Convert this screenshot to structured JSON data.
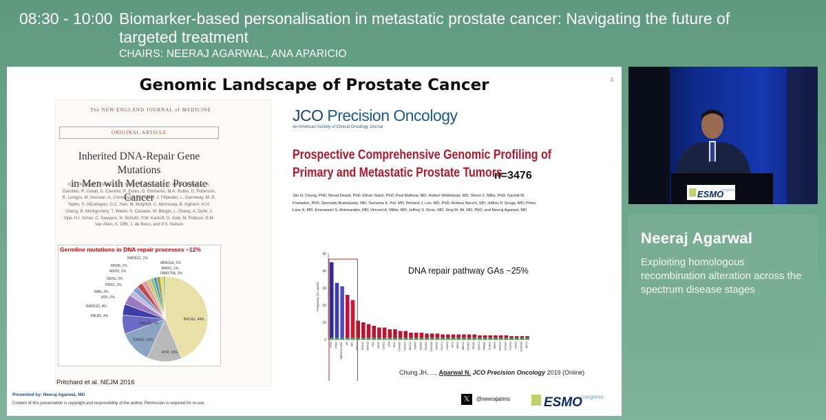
{
  "header": {
    "time": "08:30 - 10:00",
    "title_line1": "Biomarker-based personalisation in metastatic prostate cancer: Navigating the future of",
    "title_line2": "targeted treatment",
    "chairs": "CHAIRS: NEERAJ AGARWAL, ANA APARICIO"
  },
  "slide": {
    "title": "Genomic Landscape of Prostate Cancer",
    "page_number": "4",
    "nejm": {
      "journal": "The NEW ENGLAND JOURNAL of MEDICINE",
      "section": "ORIGINAL ARTICLE",
      "title_line1": "Inherited DNA-Repair Gene Mutations",
      "title_line2": "in Men with Metastatic Prostate Cancer",
      "authors": "C.C. Pritchard, J. Mateo, M.F. Walsh, N. De Sarkar, W. Abida, H. Beltran, A. Garofalo, R. Gulati, S. Carreira, R. Eeles, O. Elemento, M.A. Rubin, D. Robinson, R. Lonigro, M. Hussain, A. Chinnaiyan, J. Vinson, J. Filipenko, L. Garraway, M.-E. Taplin, S. AlDubayan, G.C. Han, M. Beightol, C. Morrissey, B. Nghiem, H.H. Cheng, B. Montgomery, T. Walsh, S. Casadei, M. Berger, L. Zhang, A. Zehir, J. Vijai, H.I. Scher, C. Sawyers, N. Schultz, P.W. Kantoff, D. Solit, M. Robson, E.M. Van Allen, K. Offit, J. de Bono, and P.S. Nelson",
      "pie_heading": "Germline mutations in DNA repair processes ~12%",
      "pie_labels": {
        "brca2": "BRCA2, 44%",
        "atm": "ATM, 13%",
        "chek2": "CHEK2, 12%",
        "brca1": "BRCA1, 7%",
        "pal": "PALB2, 4%",
        "rad51d": "RAD51D, 4%",
        "atr": "ATR, 2%",
        "nbn": "NBN, 2%",
        "pms2": "PMS2, 2%",
        "gen1": "GEN1, 2%",
        "msh2": "MSH2, 1%",
        "msh6": "MSH6, 1%",
        "rad51c": "RAD51C, 1%",
        "mre11a": "MRE11A, 1%",
        "brip1": "BRIP1, 1%",
        "fam175a": "FAM175A, 1%"
      },
      "citation": "Pritchard et al. NEJM 2016"
    },
    "jco": {
      "logo_main": "JCO",
      "logo_rest": "Precision Oncology",
      "logo_sub": "An American Society of Clinical Oncology Journal",
      "title_line1": "Prospective Comprehensive Genomic Profiling of",
      "title_line2": "Primary and Metastatic Prostate Tumors",
      "n_value": "n=3476",
      "authors": "Jon H. Chung, PhD; Ninad Dewal, PhD; Ethan Sokol, PhD; Paul Mathew, MD; Robert Whitehead, MD; Sherri Z. Millis, PhD; Garrett M. Frampton, PhD; Gennady Bratslavsky, MD; Sumanta K. Pal, MD; Richard J. Lee, MD, PhD; Andrea Necchi, MD; Jeffrey P. Gregg, MD; Primo Lara Jr, MD; Emmanuel S. Antonarakis, MD; Vincent A. Miller, MD; Jeffrey S. Ross, MD; Siraj M. Ali, MD, PhD; and Neeraj Agarwal, MD",
      "dna_label": "DNA repair pathway GAs ~25%",
      "citation_prefix": "Chung JH, ..., ",
      "citation_author": "Agarwal N.",
      "citation_journal": "JCO Precision Oncology",
      "citation_suffix": " 2019 (Online)"
    },
    "presented_by": "Presented by: Neeraj Agarwal, MD",
    "copyright": "Content of this presentation is copyright and responsibility of the author. Permission is required for re-use.",
    "x_icon": "𝕏",
    "x_handle": "@neerajaiims",
    "esmo_word": "ESMO",
    "esmo_congress": "congress"
  },
  "chart_data": {
    "type": "bar",
    "ylim": [
      0,
      50
    ],
    "yticks": [
      "0",
      "10",
      "20",
      "30",
      "40",
      "50"
    ],
    "ylabel": "Frequency (% cases)",
    "categories": [
      "TP53",
      "PTEN",
      "TMPRSS2-ERG",
      "AR",
      "APC",
      "BRCA2",
      "FOXA1",
      "KMT2D",
      "RB1",
      "SPOP",
      "CDK12",
      "ATM",
      "MYC",
      "CTNNB1",
      "PIK3CA",
      "BRCA1",
      "ZNRF3",
      "KDM6A",
      "PIK3R1",
      "CDKN1B",
      "RAD51",
      "NKX3-1",
      "CHEK2",
      "AKT1",
      "MSH2",
      "MED12",
      "NCOR1",
      "PALB2",
      "FANCA",
      "ERBB2",
      "CCND1",
      "MSH6",
      "ARID1A",
      "NCOA2",
      "FGFR2",
      "GNAS",
      "CDKN2A",
      "MLH1"
    ],
    "values": [
      45,
      33,
      31,
      26,
      23,
      11,
      10,
      9,
      8,
      7,
      7,
      6,
      6,
      5,
      5,
      4,
      4,
      4,
      3.5,
      3.5,
      3.5,
      3,
      3,
      3,
      3,
      3,
      3,
      3,
      2.5,
      2.5,
      2.5,
      2.5,
      2.5,
      2.5,
      2,
      2,
      2,
      2
    ]
  },
  "speaker": {
    "name": "Neeraj Agarwal",
    "topic": "Exploiting homologous recombination alteration across the spectrum disease stages",
    "podium_brand": "ESMO",
    "podium_sub": "congress"
  },
  "colors": {
    "background": "#6aa58a",
    "panel": "#79ad94",
    "jco_title": "#b5172a",
    "esmo_blue": "#0a2a6b"
  }
}
